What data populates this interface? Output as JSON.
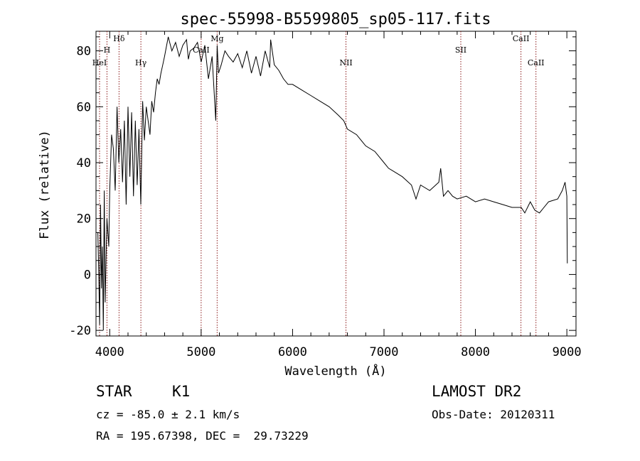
{
  "chart_data": {
    "type": "line",
    "title": "spec-55998-B5599805_sp05-117.fits",
    "xlabel": "Wavelength (Å)",
    "ylabel": "Flux (relative)",
    "xlim": [
      3850,
      9100
    ],
    "ylim": [
      -22,
      87
    ],
    "xticks": [
      4000,
      5000,
      6000,
      7000,
      8000,
      9000
    ],
    "yticks": [
      -20,
      0,
      20,
      40,
      60,
      80
    ],
    "grid": false,
    "series": [
      {
        "x": [
          3870,
          3880,
          3890,
          3900,
          3910,
          3920,
          3930,
          3940,
          3950,
          3960,
          3970,
          3980,
          3990,
          4000,
          4020,
          4040,
          4060,
          4080,
          4100,
          4120,
          4140,
          4160,
          4180,
          4200,
          4220,
          4240,
          4260,
          4280,
          4300,
          4320,
          4340,
          4360,
          4380,
          4400,
          4420,
          4440,
          4460,
          4480,
          4500,
          4520,
          4540,
          4560,
          4580,
          4600,
          4640,
          4680,
          4720,
          4760,
          4800,
          4840,
          4860,
          4880,
          4920,
          4960,
          5000,
          5040,
          5080,
          5120,
          5160,
          5175,
          5190,
          5220,
          5260,
          5300,
          5350,
          5400,
          5450,
          5500,
          5550,
          5600,
          5650,
          5700,
          5750,
          5760,
          5800,
          5850,
          5900,
          5950,
          6000,
          6100,
          6200,
          6300,
          6400,
          6500,
          6560,
          6600,
          6700,
          6800,
          6900,
          7000,
          7050,
          7100,
          7200,
          7300,
          7350,
          7400,
          7500,
          7600,
          7620,
          7650,
          7700,
          7750,
          7800,
          7900,
          8000,
          8100,
          8200,
          8300,
          8400,
          8500,
          8540,
          8600,
          8650,
          8700,
          8800,
          8900,
          8950,
          8980,
          9000,
          9005
        ],
        "values": [
          15,
          0,
          -18,
          25,
          -5,
          10,
          -20,
          30,
          -10,
          5,
          20,
          15,
          10,
          30,
          50,
          45,
          30,
          60,
          40,
          52,
          33,
          55,
          25,
          60,
          35,
          58,
          28,
          55,
          32,
          52,
          25,
          62,
          48,
          60,
          55,
          50,
          62,
          58,
          65,
          70,
          68,
          72,
          75,
          78,
          85,
          80,
          83,
          78,
          82,
          84,
          77,
          80,
          81,
          83,
          76,
          82,
          70,
          78,
          55,
          82,
          72,
          75,
          80,
          78,
          76,
          79,
          74,
          80,
          72,
          78,
          71,
          80,
          74,
          84,
          75,
          73,
          70,
          68,
          68,
          66,
          64,
          62,
          60,
          57,
          55,
          52,
          50,
          46,
          44,
          40,
          38,
          37,
          35,
          32,
          27,
          32,
          30,
          33,
          38,
          28,
          30,
          28,
          27,
          28,
          26,
          27,
          26,
          25,
          24,
          24,
          22,
          26,
          23,
          22,
          26,
          27,
          30,
          33,
          28,
          4
        ]
      }
    ],
    "lines": [
      {
        "name": "HeI",
        "x": 3889
      },
      {
        "name": "H",
        "x": 3970
      },
      {
        "name": "Hδ",
        "x": 4102
      },
      {
        "name": "Hγ",
        "x": 4341
      },
      {
        "name": "CaII",
        "x": 5000
      },
      {
        "name": "Mg",
        "x": 5175
      },
      {
        "name": "NII",
        "x": 6584
      },
      {
        "name": "SII",
        "x": 7840
      },
      {
        "name": "CaII",
        "x": 8498
      },
      {
        "name": "CaII",
        "x": 8662
      }
    ]
  },
  "info": {
    "object_class": "STAR",
    "subclass": "K1",
    "velocity": "cz = -85.0 ± 2.1 km/s",
    "coords": "RA = 195.67398, DEC =  29.73229",
    "survey": "LAMOST DR2",
    "obs_date": "Obs-Date: 20120311"
  }
}
